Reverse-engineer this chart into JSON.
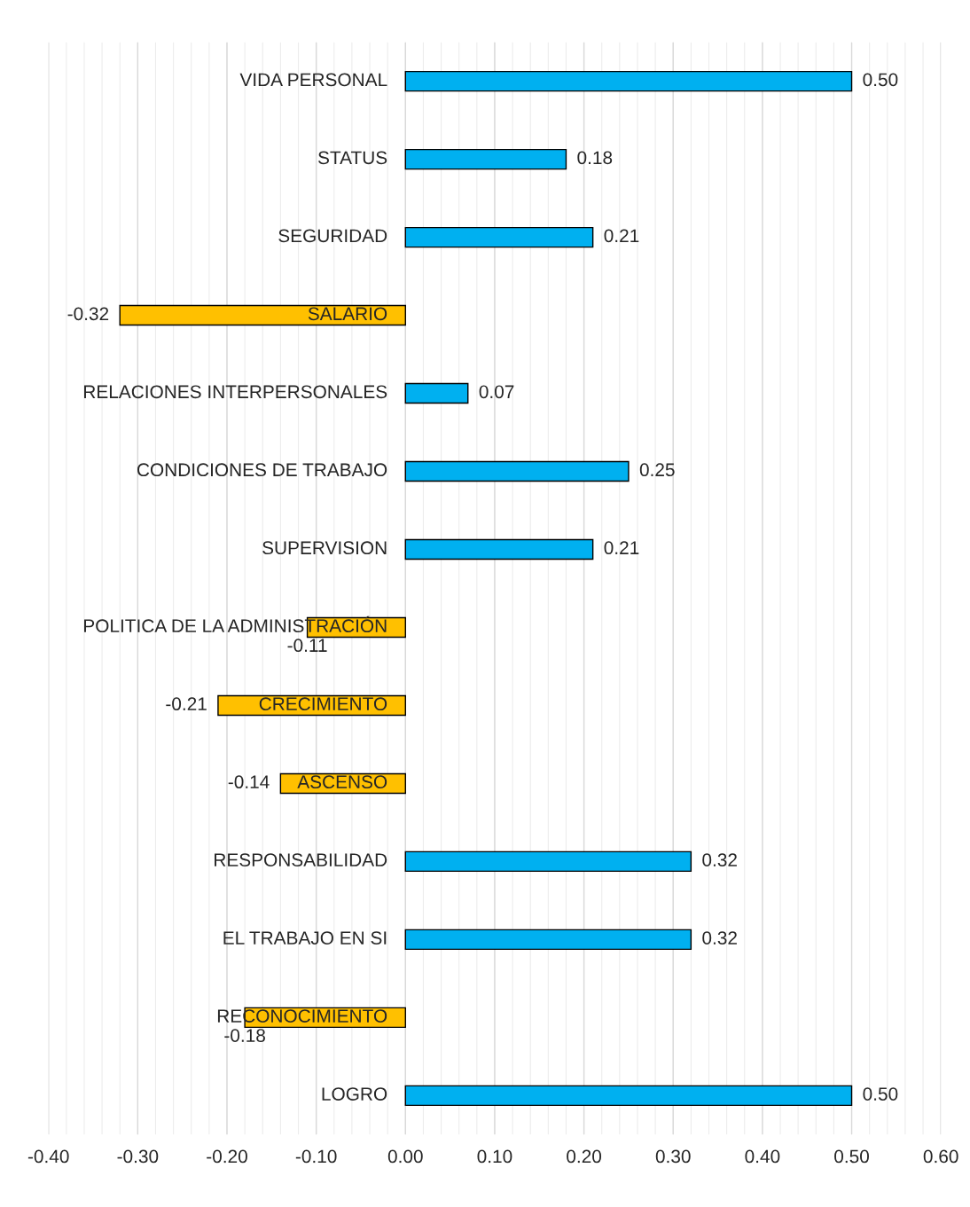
{
  "chart_data": {
    "type": "bar",
    "orientation": "horizontal",
    "categories": [
      "VIDA PERSONAL",
      "STATUS",
      "SEGURIDAD",
      "SALARIO",
      "RELACIONES INTERPERSONALES",
      "CONDICIONES DE TRABAJO",
      "SUPERVISION",
      "POLITICA DE LA ADMINISTRACIÓN",
      "CRECIMIENTO",
      "ASCENSO",
      "RESPONSABILIDAD",
      "EL TRABAJO EN SI",
      "RECONOCIMIENTO",
      "LOGRO"
    ],
    "values": [
      0.5,
      0.18,
      0.21,
      -0.32,
      0.07,
      0.25,
      0.21,
      -0.11,
      -0.21,
      -0.14,
      0.32,
      0.32,
      -0.18,
      0.5
    ],
    "colors": [
      "#00b0f0",
      "#00b0f0",
      "#00b0f0",
      "#ffc000",
      "#00b0f0",
      "#00b0f0",
      "#00b0f0",
      "#ffc000",
      "#ffc000",
      "#ffc000",
      "#00b0f0",
      "#00b0f0",
      "#ffc000",
      "#00b0f0"
    ],
    "value_labels": [
      "0.50",
      "0.18",
      "0.21",
      "-0.32",
      "0.07",
      "0.25",
      "0.21",
      "-0.11",
      "-0.21",
      "-0.14",
      "0.32",
      "0.32",
      "-0.18",
      "0.50"
    ],
    "xlim": [
      -0.4,
      0.6
    ],
    "xticks": [
      {
        "value": -0.4,
        "label": "-0.40"
      },
      {
        "value": -0.3,
        "label": "-0.30"
      },
      {
        "value": -0.2,
        "label": "-0.20"
      },
      {
        "value": -0.1,
        "label": "-0.10"
      },
      {
        "value": 0,
        "label": "0.00"
      },
      {
        "value": 0.1,
        "label": "0.10"
      },
      {
        "value": 0.2,
        "label": "0.20"
      },
      {
        "value": 0.3,
        "label": "0.30"
      },
      {
        "value": 0.4,
        "label": "0.40"
      },
      {
        "value": 0.5,
        "label": "0.50"
      },
      {
        "value": 0.6,
        "label": "0.60"
      }
    ],
    "grid": "x"
  }
}
